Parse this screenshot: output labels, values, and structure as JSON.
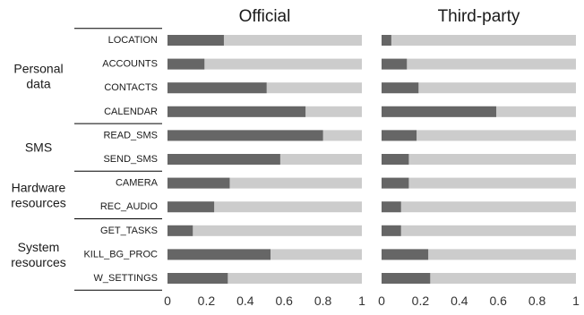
{
  "chart_data": {
    "type": "bar",
    "orientation": "horizontal",
    "stacked": true,
    "xlim": [
      0,
      1
    ],
    "x_ticks": [
      "0",
      "0.2",
      "0.4",
      "0.6",
      "0.8",
      "1"
    ],
    "categories": [
      "LOCATION",
      "ACCOUNTS",
      "CONTACTS",
      "CALENDAR",
      "READ_SMS",
      "SEND_SMS",
      "CAMERA",
      "REC_AUDIO",
      "GET_TASKS",
      "KILL_BG_PROC",
      "W_SETTINGS"
    ],
    "groups": [
      {
        "label_lines": [
          "Personal",
          "data"
        ],
        "categories": [
          "LOCATION",
          "ACCOUNTS",
          "CONTACTS",
          "CALENDAR"
        ]
      },
      {
        "label_lines": [
          "SMS"
        ],
        "categories": [
          "READ_SMS",
          "SEND_SMS"
        ]
      },
      {
        "label_lines": [
          "Hardware",
          "resources"
        ],
        "categories": [
          "CAMERA",
          "REC_AUDIO"
        ]
      },
      {
        "label_lines": [
          "System",
          "resources"
        ],
        "categories": [
          "GET_TASKS",
          "KILL_BG_PROC",
          "W_SETTINGS"
        ]
      }
    ],
    "panels": [
      {
        "title": "Official",
        "values": [
          0.29,
          0.19,
          0.51,
          0.71,
          0.8,
          0.58,
          0.32,
          0.24,
          0.13,
          0.53,
          0.31
        ]
      },
      {
        "title": "Third-party",
        "values": [
          0.05,
          0.13,
          0.19,
          0.59,
          0.18,
          0.14,
          0.14,
          0.1,
          0.1,
          0.24,
          0.25
        ]
      }
    ],
    "colors": {
      "filled": "#666666",
      "remainder": "#cccccc",
      "divider": "#000000"
    }
  }
}
